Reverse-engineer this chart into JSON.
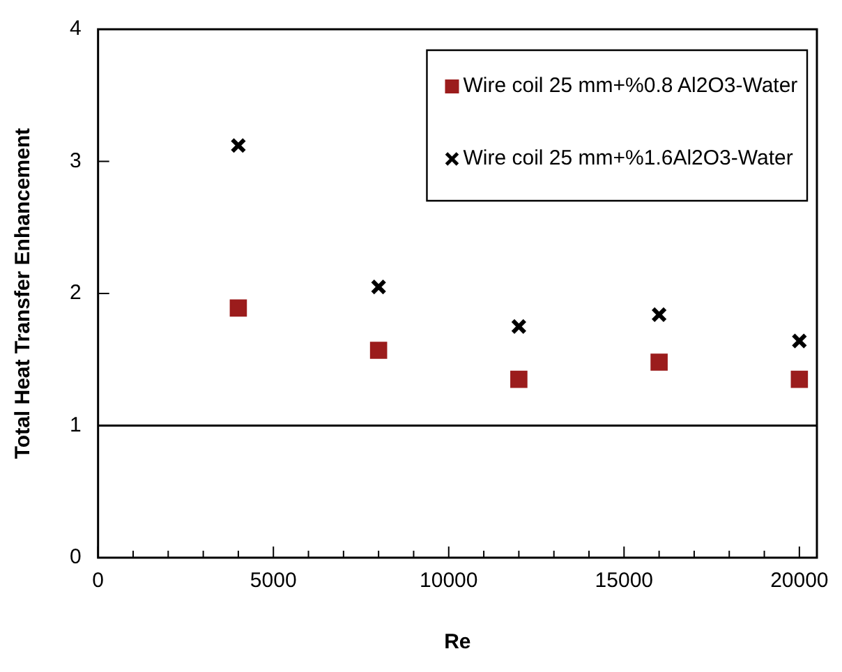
{
  "chart_data": {
    "type": "scatter",
    "xlabel": "Re",
    "ylabel": "Total Heat Transfer Enhancement",
    "x": [
      4000,
      8000,
      12000,
      16000,
      20000
    ],
    "series": [
      {
        "name": "Wire coil 25 mm+%0.8 Al2O3-Water",
        "color": "#9b1c1c",
        "marker": "square",
        "values": [
          1.89,
          1.57,
          1.35,
          1.48,
          1.35
        ]
      },
      {
        "name": "Wire coil 25 mm+%1.6Al2O3-Water",
        "color": "#000000",
        "marker": "cross",
        "values": [
          3.12,
          2.05,
          1.75,
          1.84,
          1.64
        ]
      }
    ],
    "xlim": [
      0,
      20500
    ],
    "xticks": [
      0,
      {
        "value": 1000,
        "label": null
      },
      {
        "value": 2000,
        "label": null
      },
      {
        "value": 3000,
        "label": null
      },
      {
        "value": 4000,
        "label": null
      },
      5000,
      {
        "value": 6000,
        "label": null
      },
      {
        "value": 7000,
        "label": null
      },
      {
        "value": 8000,
        "label": null
      },
      {
        "value": 9000,
        "label": null
      },
      10000,
      {
        "value": 11000,
        "label": null
      },
      {
        "value": 12000,
        "label": null
      },
      {
        "value": 13000,
        "label": null
      },
      {
        "value": 14000,
        "label": null
      },
      15000,
      {
        "value": 16000,
        "label": null
      },
      {
        "value": 17000,
        "label": null
      },
      {
        "value": 18000,
        "label": null
      },
      {
        "value": 19000,
        "label": null
      },
      20000
    ],
    "ylim": [
      0,
      4
    ],
    "yticks": [
      0,
      1,
      2,
      3,
      4
    ],
    "ref_lines": [
      {
        "axis": "y",
        "value": 1,
        "color": "#000000"
      }
    ],
    "grid": false,
    "legend": "top right"
  }
}
